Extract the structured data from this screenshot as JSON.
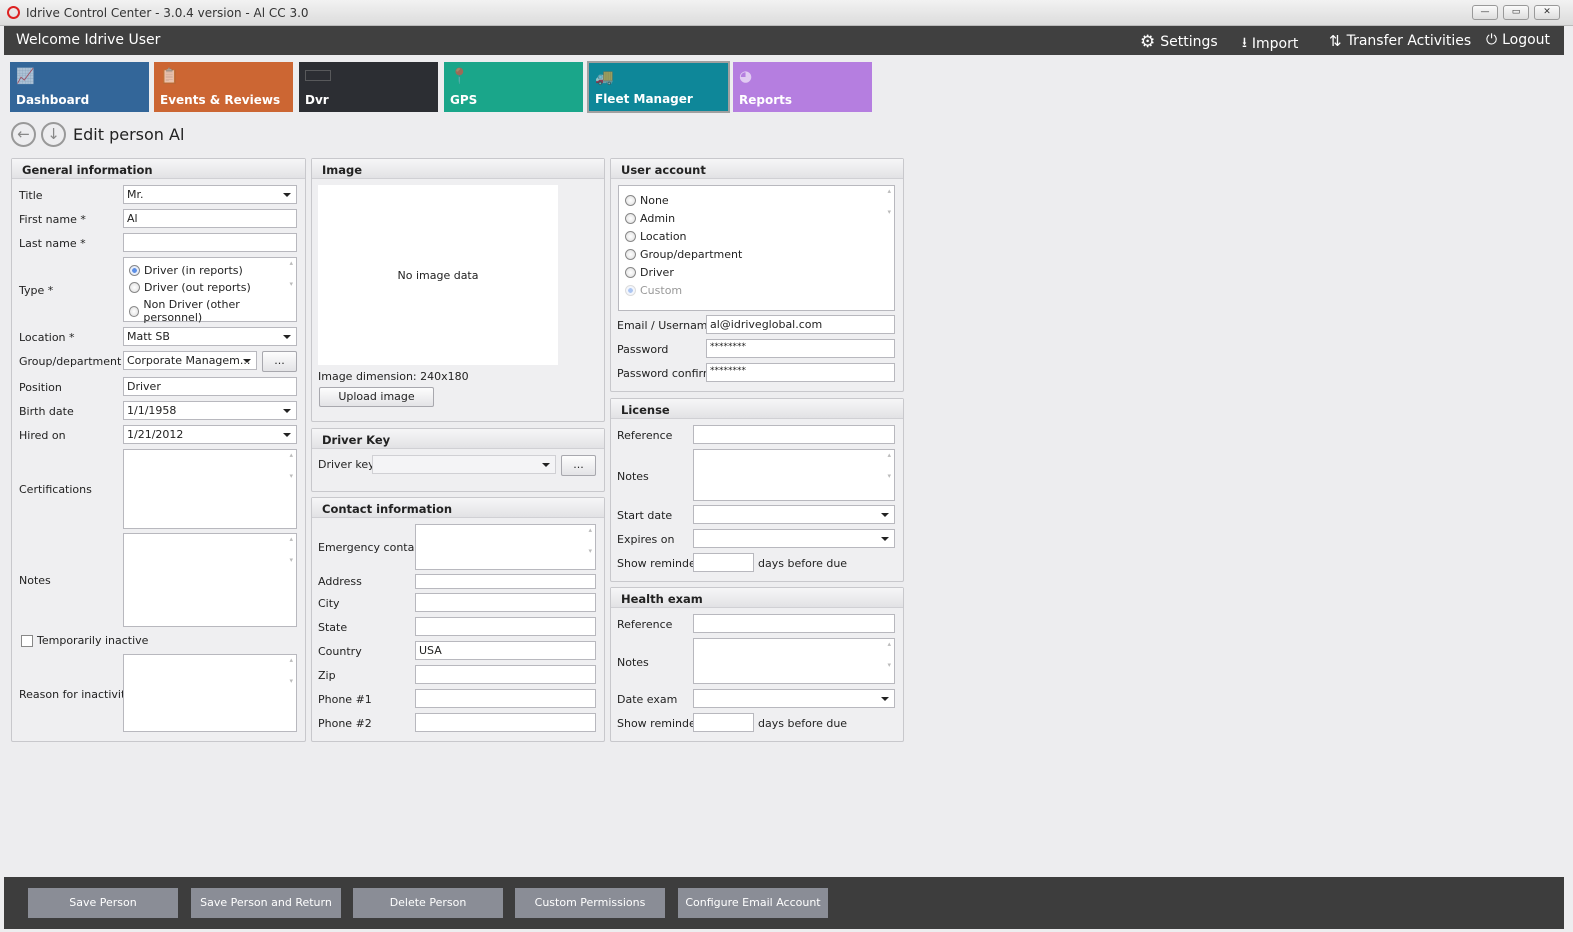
{
  "window": {
    "title": "Idrive Control Center - 3.0.4 version - Al CC 3.0",
    "minimize": "—",
    "maximize": "▭",
    "close": "✕"
  },
  "header": {
    "welcome": "Welcome Idrive User",
    "settings": "Settings",
    "import": "Import",
    "transfer": "Transfer Activities",
    "logout": "Logout"
  },
  "tiles": [
    {
      "label": "Dashboard",
      "color": "#336699",
      "icon": "chart-icon"
    },
    {
      "label": "Events & Reviews",
      "color": "#cc6633",
      "icon": "clipboard-icon"
    },
    {
      "label": "Dvr",
      "color": "#2c2e33",
      "icon": "dvr-icon"
    },
    {
      "label": "GPS",
      "color": "#1aa68a",
      "icon": "map-pin-icon"
    },
    {
      "label": "Fleet Manager",
      "color": "#0e8799",
      "icon": "vehicles-icon",
      "active": true
    },
    {
      "label": "Reports",
      "color": "#b57ee0",
      "icon": "pie-chart-icon"
    }
  ],
  "page_title": "Edit person Al",
  "general": {
    "heading": "General information",
    "title_label": "Title",
    "title_value": "Mr.",
    "first_name_label": "First name *",
    "first_name_value": "Al",
    "last_name_label": "Last name *",
    "last_name_value": "",
    "type_label": "Type *",
    "type_options": [
      "Driver (in reports)",
      "Driver (out reports)",
      "Non Driver (other personnel)"
    ],
    "type_selected": 0,
    "location_label": "Location *",
    "location_value": "Matt SB",
    "group_label": "Group/department",
    "group_value": "Corporate Managem...",
    "group_button": "...",
    "position_label": "Position",
    "position_value": "Driver",
    "birth_label": "Birth date",
    "birth_value": "1/1/1958",
    "hired_label": "Hired on",
    "hired_value": "1/21/2012",
    "cert_label": "Certifications",
    "notes_label": "Notes",
    "inactive_label": "Temporarily inactive",
    "inactive_checked": false,
    "reason_label": "Reason for inactivity"
  },
  "image": {
    "heading": "Image",
    "placeholder": "No image data",
    "dimension_label": "Image dimension:",
    "dimension_value": "240x180",
    "upload": "Upload image"
  },
  "driver_key": {
    "heading": "Driver Key",
    "label": "Driver key",
    "value": "",
    "button": "..."
  },
  "contact": {
    "heading": "Contact information",
    "emergency": "Emergency contact",
    "address": "Address",
    "city": "City",
    "state": "State",
    "country": "Country",
    "country_value": "USA",
    "zip": "Zip",
    "phone1": "Phone #1",
    "phone2": "Phone #2"
  },
  "user_account": {
    "heading": "User account",
    "options": [
      "None",
      "Admin",
      "Location",
      "Group/department",
      "Driver",
      "Custom"
    ],
    "selected": 5,
    "email_label": "Email / Username",
    "email_value": "al@idriveglobal.com",
    "password_label": "Password",
    "password_value": "********",
    "confirm_label": "Password confirm",
    "confirm_value": "********"
  },
  "license": {
    "heading": "License",
    "reference": "Reference",
    "notes": "Notes",
    "start": "Start date",
    "expires": "Expires on",
    "reminder": "Show reminder",
    "days": "days before due"
  },
  "health": {
    "heading": "Health exam",
    "reference": "Reference",
    "notes": "Notes",
    "date": "Date exam",
    "reminder": "Show reminder",
    "days": "days before due"
  },
  "footer": {
    "save": "Save Person",
    "save_return": "Save Person and Return",
    "delete": "Delete Person",
    "permissions": "Custom Permissions",
    "email": "Configure Email Account"
  }
}
